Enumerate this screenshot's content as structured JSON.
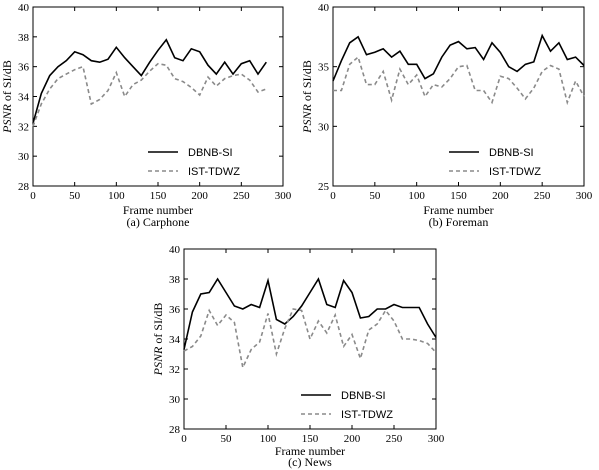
{
  "chart_data": [
    {
      "type": "line",
      "caption": "(a) Carphone",
      "xlabel": "Frame number",
      "ylabel_prefix": "PSNR",
      "ylabel_suffix": " of SI/dB",
      "xlim": [
        0,
        300
      ],
      "ylim": [
        28,
        40
      ],
      "xticks": [
        "0",
        "50",
        "100",
        "150",
        "200",
        "250",
        "300"
      ],
      "yticks": [
        "28",
        "30",
        "32",
        "34",
        "36",
        "38",
        "40"
      ],
      "legend_position": "lower-right",
      "series": [
        {
          "name": "DBNB-SI",
          "style": "solid",
          "x": [
            0,
            10,
            20,
            30,
            40,
            50,
            60,
            70,
            80,
            90,
            100,
            110,
            120,
            130,
            140,
            150,
            160,
            170,
            180,
            190,
            200,
            210,
            220,
            230,
            240,
            250,
            260,
            270,
            280
          ],
          "y": [
            32.2,
            34.2,
            35.4,
            36.0,
            36.4,
            37.0,
            36.8,
            36.4,
            36.3,
            36.5,
            37.3,
            36.6,
            36.0,
            35.4,
            36.3,
            37.1,
            37.8,
            36.6,
            36.4,
            37.2,
            37.0,
            36.1,
            35.5,
            36.3,
            35.5,
            36.2,
            36.4,
            35.5,
            36.3
          ]
        },
        {
          "name": "IST-TDWZ",
          "style": "dashed",
          "x": [
            0,
            10,
            20,
            30,
            40,
            50,
            60,
            70,
            80,
            90,
            100,
            110,
            120,
            130,
            140,
            150,
            160,
            170,
            180,
            190,
            200,
            210,
            220,
            230,
            240,
            250,
            260,
            270,
            280
          ],
          "y": [
            32.0,
            33.5,
            34.5,
            35.2,
            35.5,
            35.8,
            36.0,
            33.5,
            33.8,
            34.4,
            35.6,
            34.0,
            34.8,
            35.1,
            35.7,
            36.2,
            36.1,
            35.2,
            35.0,
            34.6,
            34.1,
            35.3,
            34.7,
            35.2,
            35.4,
            35.5,
            35.1,
            34.3,
            34.5
          ]
        }
      ]
    },
    {
      "type": "line",
      "caption": "(b) Foreman",
      "xlabel": "Frame number",
      "ylabel_prefix": "PSNR",
      "ylabel_suffix": " of SI/dB",
      "xlim": [
        0,
        300
      ],
      "ylim": [
        25,
        40
      ],
      "xticks": [
        "0",
        "50",
        "100",
        "150",
        "200",
        "250",
        "300"
      ],
      "yticks": [
        "25",
        "30",
        "35",
        "40"
      ],
      "legend_position": "lower-right",
      "series": [
        {
          "name": "DBNB-SI",
          "style": "solid",
          "x": [
            0,
            10,
            20,
            30,
            40,
            50,
            60,
            70,
            80,
            90,
            100,
            110,
            120,
            130,
            140,
            150,
            160,
            170,
            180,
            190,
            200,
            210,
            220,
            230,
            240,
            250,
            260,
            270,
            280,
            290,
            300
          ],
          "y": [
            33.8,
            35.5,
            37.0,
            37.5,
            36.0,
            36.2,
            36.5,
            35.8,
            36.3,
            35.2,
            35.2,
            34.0,
            34.4,
            35.8,
            36.8,
            37.1,
            36.5,
            36.6,
            35.6,
            37.0,
            36.2,
            35.0,
            34.6,
            35.2,
            35.4,
            37.6,
            36.3,
            37.0,
            35.6,
            35.8,
            35.1
          ]
        },
        {
          "name": "IST-TDWZ",
          "style": "dashed",
          "x": [
            0,
            10,
            20,
            30,
            40,
            50,
            60,
            70,
            80,
            90,
            100,
            110,
            120,
            130,
            140,
            150,
            160,
            170,
            180,
            190,
            200,
            210,
            220,
            230,
            240,
            250,
            260,
            270,
            280,
            290,
            300
          ],
          "y": [
            33.0,
            33.0,
            35.2,
            35.8,
            33.5,
            33.5,
            34.6,
            32.2,
            34.8,
            33.5,
            34.3,
            32.5,
            33.5,
            33.3,
            34.0,
            35.0,
            35.1,
            33.0,
            33.0,
            32.0,
            34.2,
            34.0,
            33.2,
            32.3,
            33.2,
            34.6,
            35.1,
            34.8,
            32.0,
            33.8,
            32.5
          ]
        }
      ]
    },
    {
      "type": "line",
      "caption": "(c) News",
      "xlabel": "Frame number",
      "ylabel_prefix": "PSNR",
      "ylabel_suffix": " of SI/dB",
      "xlim": [
        0,
        300
      ],
      "ylim": [
        28,
        40
      ],
      "xticks": [
        "0",
        "50",
        "100",
        "150",
        "200",
        "250",
        "300"
      ],
      "yticks": [
        "28",
        "30",
        "32",
        "34",
        "36",
        "38",
        "40"
      ],
      "legend_position": "lower-right",
      "series": [
        {
          "name": "DBNB-SI",
          "style": "solid",
          "x": [
            0,
            10,
            20,
            30,
            40,
            50,
            60,
            70,
            80,
            90,
            100,
            110,
            120,
            130,
            140,
            150,
            160,
            170,
            180,
            190,
            200,
            210,
            220,
            230,
            240,
            250,
            260,
            270,
            280,
            290,
            300
          ],
          "y": [
            33.3,
            35.8,
            37.0,
            37.1,
            38.0,
            37.1,
            36.2,
            36.0,
            36.3,
            36.1,
            37.9,
            35.3,
            35.0,
            35.5,
            36.2,
            37.1,
            38.0,
            36.3,
            36.1,
            37.9,
            37.1,
            35.4,
            35.5,
            36.0,
            36.0,
            36.3,
            36.1,
            36.1,
            36.1,
            35.0,
            34.1
          ]
        },
        {
          "name": "IST-TDWZ",
          "style": "dashed",
          "x": [
            0,
            10,
            20,
            30,
            40,
            50,
            60,
            70,
            80,
            90,
            100,
            110,
            120,
            130,
            140,
            150,
            160,
            170,
            180,
            190,
            200,
            210,
            220,
            230,
            240,
            250,
            260,
            270,
            280,
            290,
            300
          ],
          "y": [
            33.2,
            33.5,
            34.2,
            35.9,
            34.9,
            35.6,
            35.1,
            32.1,
            33.3,
            33.8,
            35.7,
            33.0,
            34.7,
            36.0,
            35.9,
            34.0,
            35.2,
            34.4,
            35.6,
            33.5,
            34.3,
            32.7,
            34.6,
            35.0,
            35.9,
            35.2,
            34.0,
            34.0,
            33.9,
            33.7,
            33.1
          ]
        }
      ]
    }
  ]
}
